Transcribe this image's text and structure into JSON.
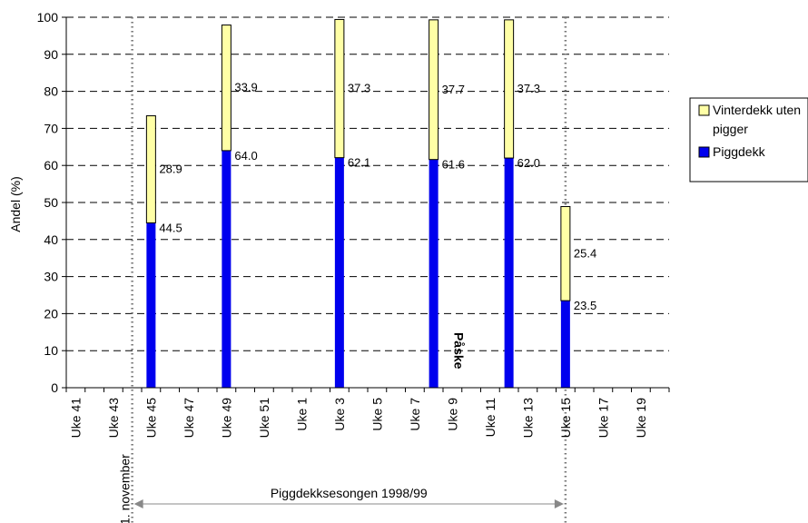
{
  "chart_data": {
    "type": "bar",
    "stacked": true,
    "ylabel": "Andel (%)",
    "ylim": [
      0,
      100
    ],
    "yticks": [
      0,
      10,
      20,
      30,
      40,
      50,
      60,
      70,
      80,
      90,
      100
    ],
    "grid": "horizontal dashed",
    "categories": [
      "Uke 41",
      "Uke 43",
      "Uke 45",
      "Uke 47",
      "Uke 49",
      "Uke 51",
      "Uke 1",
      "Uke 3",
      "Uke 5",
      "Uke 7",
      "Uke 9",
      "Uke 11",
      "Uke 13",
      "Uke 15",
      "Uke 17",
      "Uke 19"
    ],
    "bars": [
      {
        "week": 45,
        "piggdekk": 44.5,
        "vinterdekk": 28.9
      },
      {
        "week": 49,
        "piggdekk": 64.0,
        "vinterdekk": 33.9
      },
      {
        "week": 3,
        "piggdekk": 62.1,
        "vinterdekk": 37.3
      },
      {
        "week": 8,
        "piggdekk": 61.6,
        "vinterdekk": 37.7
      },
      {
        "week": 12,
        "piggdekk": 62.0,
        "vinterdekk": 37.3
      },
      {
        "week": 15,
        "piggdekk": 23.5,
        "vinterdekk": 25.4
      }
    ],
    "series": [
      {
        "name": "Vinterdekk uten pigger",
        "color": "#ffffa6"
      },
      {
        "name": "Piggdekk",
        "color": "#0000ee"
      }
    ],
    "legend_position": "right",
    "annotations": {
      "november": "1. november",
      "paske": "Påske",
      "season": "Piggdekksesongen 1998/99"
    }
  }
}
